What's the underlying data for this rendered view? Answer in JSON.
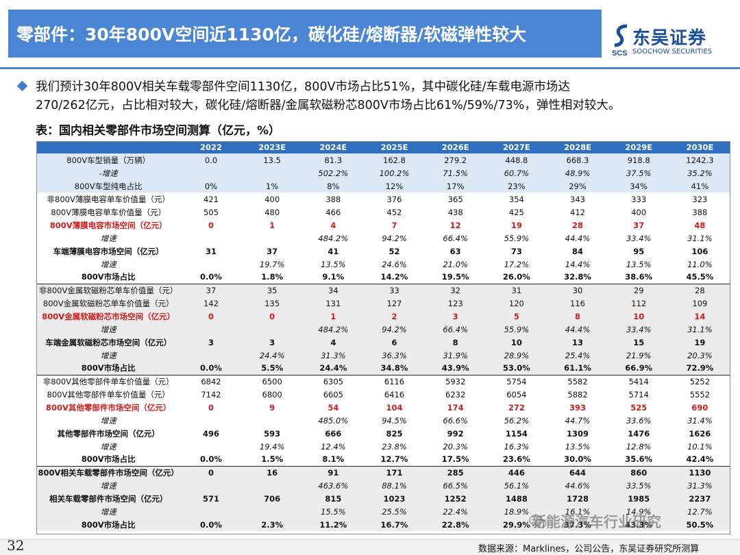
{
  "header": {
    "title": "零部件：30年800V空间近1130亿，碳化硅/熔断器/软磁弹性较大"
  },
  "logo": {
    "brand_cn": "东吴证券",
    "brand_en": "SOOCHOW SECURITIES",
    "mark_text": "SCS"
  },
  "colors": {
    "title_bar": "#4a86d4",
    "table_header": "#2f6fc0",
    "highlight_red": "#d21c1c",
    "blue_shade": "#dde9f7",
    "grey_shade": "#ececec"
  },
  "bullet": {
    "line1": "我们预计30年800V相关车载零部件空间1130亿，800V市场占比51%，其中碳化硅/车载电源市场达",
    "line2": "270/262亿元，占比相对较大，碳化硅/熔断器/金属软磁粉芯800V市场占比61%/59%/73%，弹性相对较大。"
  },
  "table_title": "表：国内相关零部件市场空间测算（亿元，%）",
  "table": {
    "headers": [
      "",
      "2022",
      "2023E",
      "2024E",
      "2025E",
      "2026E",
      "2027E",
      "2028E",
      "2029E",
      "2030E"
    ],
    "rows": [
      [
        "800V车型销量（万辆）",
        "0.0",
        "13.5",
        "81.3",
        "162.8",
        "279.2",
        "448.8",
        "668.3",
        "918.8",
        "1242.3"
      ],
      [
        "-增速",
        "",
        "",
        "502.2%",
        "100.2%",
        "71.5%",
        "60.7%",
        "48.9%",
        "37.5%",
        "35.2%"
      ],
      [
        "800V车型纯电占比",
        "0%",
        "1%",
        "8%",
        "12%",
        "17%",
        "23%",
        "29%",
        "34%",
        "41%"
      ],
      [
        "非800V薄膜电容单车价值量（元）",
        "421",
        "400",
        "388",
        "376",
        "365",
        "354",
        "343",
        "333",
        "323"
      ],
      [
        "800V薄膜电容单车价值量（元）",
        "505",
        "480",
        "466",
        "452",
        "438",
        "425",
        "412",
        "400",
        "388"
      ],
      [
        "800V薄膜电容市场空间（亿元）",
        "0",
        "1",
        "4",
        "7",
        "12",
        "19",
        "28",
        "37",
        "48"
      ],
      [
        "增速",
        "",
        "",
        "484.2%",
        "94.2%",
        "66.4%",
        "55.9%",
        "44.4%",
        "33.4%",
        "31.1%"
      ],
      [
        "车端薄膜电容市场空间（亿元）",
        "31",
        "37",
        "41",
        "52",
        "63",
        "73",
        "84",
        "95",
        "106"
      ],
      [
        "增速",
        "",
        "19.7%",
        "13.5%",
        "24.6%",
        "21.0%",
        "17.2%",
        "14.4%",
        "13.5%",
        "11.0%"
      ],
      [
        "800V市场占比",
        "0.0%",
        "1.8%",
        "9.1%",
        "14.2%",
        "19.5%",
        "26.0%",
        "32.8%",
        "38.6%",
        "45.5%"
      ],
      [
        "非800V金属软磁粉芯单车价值量（元）",
        "37",
        "35",
        "34",
        "33",
        "32",
        "31",
        "30",
        "29",
        "28"
      ],
      [
        "800V金属软磁粉芯单车价值量（元）",
        "142",
        "135",
        "131",
        "127",
        "123",
        "120",
        "116",
        "112",
        "109"
      ],
      [
        "800V金属软磁粉芯市场空间（亿元）",
        "0",
        "0",
        "1",
        "2",
        "3",
        "5",
        "8",
        "10",
        "14"
      ],
      [
        "增速",
        "",
        "",
        "484.2%",
        "94.2%",
        "66.4%",
        "55.9%",
        "44.4%",
        "33.4%",
        "31.1%"
      ],
      [
        "车端金属软磁粉芯市场空间（亿元）",
        "3",
        "3",
        "4",
        "6",
        "8",
        "10",
        "13",
        "15",
        "19"
      ],
      [
        "增速",
        "",
        "24.4%",
        "31.3%",
        "36.3%",
        "31.9%",
        "28.9%",
        "25.4%",
        "21.9%",
        "20.3%"
      ],
      [
        "800V市场占比",
        "0.0%",
        "5.5%",
        "24.4%",
        "34.8%",
        "43.9%",
        "53.0%",
        "61.1%",
        "66.9%",
        "72.9%"
      ],
      [
        "非800V其他零部件单车价值量（元）",
        "6842",
        "6500",
        "6305",
        "6116",
        "5932",
        "5754",
        "5582",
        "5414",
        "5252"
      ],
      [
        "800V其他零部件单车价值量（元）",
        "7142",
        "6800",
        "6605",
        "6416",
        "6232",
        "6054",
        "5882",
        "5714",
        "5552"
      ],
      [
        "800V其他零部件市场空间（亿元）",
        "0",
        "9",
        "54",
        "104",
        "174",
        "272",
        "393",
        "525",
        "690"
      ],
      [
        "增速",
        "",
        "",
        "485.0%",
        "94.5%",
        "66.6%",
        "56.2%",
        "44.7%",
        "33.6%",
        "31.4%"
      ],
      [
        "其他零部件市场空间（亿元）",
        "496",
        "593",
        "666",
        "825",
        "992",
        "1154",
        "1309",
        "1476",
        "1626"
      ],
      [
        "增速",
        "",
        "19.4%",
        "12.4%",
        "23.8%",
        "20.3%",
        "16.3%",
        "13.5%",
        "12.8%",
        "10.1%"
      ],
      [
        "800V市场占比",
        "0.0%",
        "1.5%",
        "8.1%",
        "12.7%",
        "17.5%",
        "23.6%",
        "30.0%",
        "35.6%",
        "42.4%"
      ],
      [
        "800V相关车载零部件市场空间（亿元）",
        "0",
        "16",
        "91",
        "171",
        "285",
        "446",
        "644",
        "860",
        "1130"
      ],
      [
        "增速",
        "",
        "",
        "463.6%",
        "88.1%",
        "66.5%",
        "56.1%",
        "44.6%",
        "33.5%",
        "31.3%"
      ],
      [
        "相关车载零部件市场空间（亿元）",
        "571",
        "706",
        "815",
        "1023",
        "1252",
        "1488",
        "1728",
        "1985",
        "2237"
      ],
      [
        "增速",
        "",
        "",
        "15.5%",
        "25.5%",
        "22.4%",
        "18.9%",
        "16.1%",
        "14.9%",
        "12.7%"
      ],
      [
        "800V市场占比",
        "0.0%",
        "2.3%",
        "11.2%",
        "16.7%",
        "22.8%",
        "29.9%",
        "37.3%",
        "43.3%",
        "50.5%"
      ]
    ]
  },
  "footer": {
    "page_number": "32",
    "source": "数据来源：Marklines，公司公告，东吴证券研究所测算",
    "watermark": "新能源汽车行业研究"
  }
}
